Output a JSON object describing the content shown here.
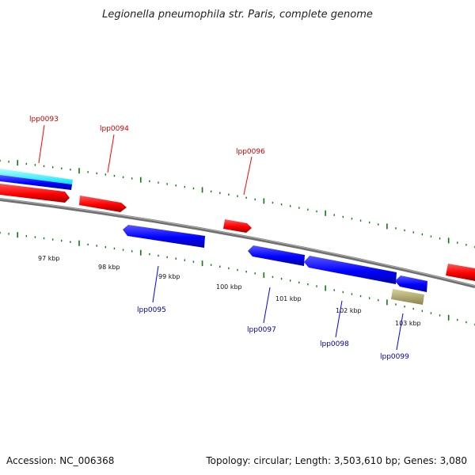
{
  "title": "Legionella pneumophila str. Paris, complete genome",
  "footer": {
    "accession": "Accession: NC_006368",
    "summary": "Topology: circular; Length: 3,503,610 bp; Genes: 3,080"
  },
  "scale_labels": [
    "97 kbp",
    "98 kbp",
    "99 kbp",
    "100 kbp",
    "101 kbp",
    "102 kbp",
    "103 kbp"
  ],
  "gene_labels": {
    "forward": [
      "lpp0093",
      "lpp0094",
      "lpp0096"
    ],
    "reverse": [
      "lpp0095",
      "lpp0097",
      "lpp0098",
      "lpp0099"
    ]
  },
  "colors": {
    "forward_gene": "#ff0000",
    "reverse_gene": "#0000ff",
    "other_feature": "#00ffff",
    "misc_feature": "#b8b070",
    "backbone": "#808080",
    "ticks": "#008000",
    "forward_label": "#cc0000",
    "reverse_label": "#0000aa"
  }
}
